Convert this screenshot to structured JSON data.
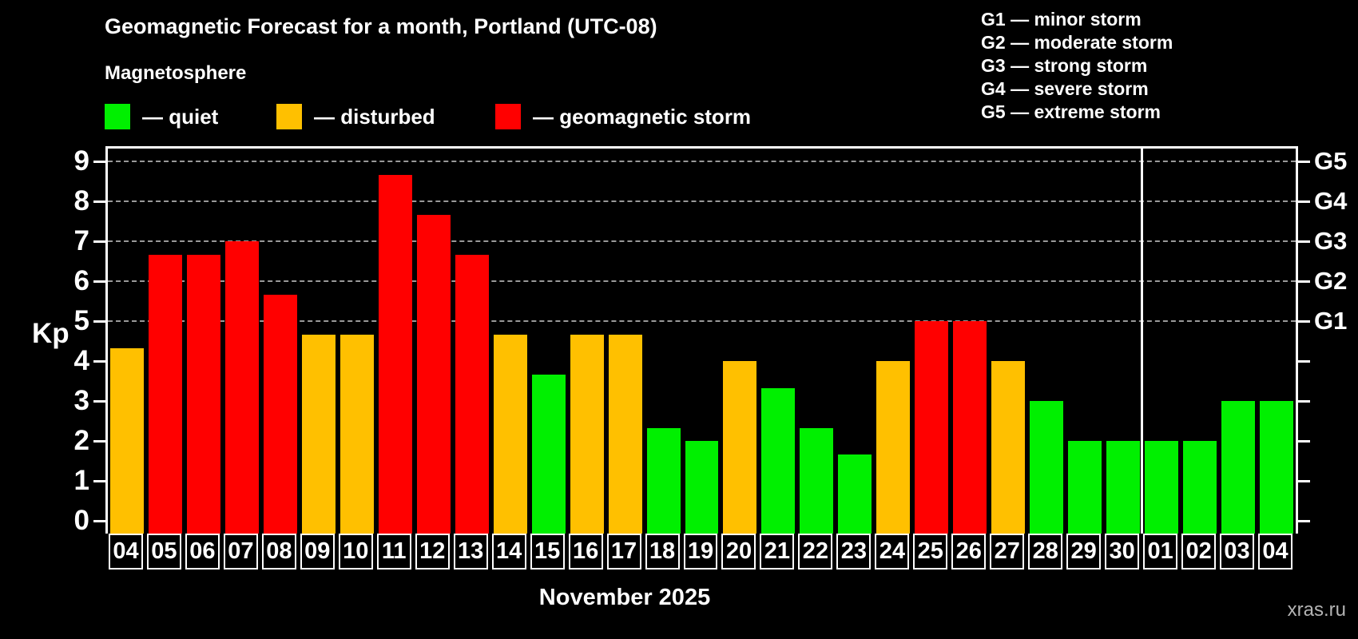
{
  "title": "Geomagnetic Forecast for a month, Portland (UTC-08)",
  "subtitle": "Magnetosphere",
  "legend": [
    {
      "text": "— quiet",
      "color": "#00f000"
    },
    {
      "text": "— disturbed",
      "color": "#ffc000"
    },
    {
      "text": "— geomagnetic storm",
      "color": "#ff0000"
    }
  ],
  "g_legend": [
    "G1 — minor storm",
    "G2 — moderate storm",
    "G3 — strong storm",
    "G4 — severe storm",
    "G5 — extreme storm"
  ],
  "axis": {
    "y_label": "Kp",
    "y_ticks": [
      0,
      1,
      2,
      3,
      4,
      5,
      6,
      7,
      8,
      9
    ],
    "right_labels": [
      "G1",
      "G2",
      "G3",
      "G4",
      "G5"
    ],
    "right_label_kp_levels": [
      5,
      6,
      7,
      8,
      9
    ]
  },
  "footer": {
    "month_label": "November 2025",
    "watermark": "xras.ru"
  },
  "chart_data": {
    "type": "bar",
    "title": "Geomagnetic Forecast for a month, Portland (UTC-08)",
    "xlabel": "November 2025",
    "ylabel": "Kp",
    "ylim": [
      0,
      9.4
    ],
    "grid": "dashed horizontal at Kp 5-9 (G1-G5 levels)",
    "gridlines_at": [
      5,
      6,
      7,
      8,
      9
    ],
    "month_separator_after_index": 26,
    "status_colors": {
      "quiet": "#00f000",
      "disturbed": "#ffc000",
      "storm": "#ff0000"
    },
    "categories": [
      "04",
      "05",
      "06",
      "07",
      "08",
      "09",
      "10",
      "11",
      "12",
      "13",
      "14",
      "15",
      "16",
      "17",
      "18",
      "19",
      "20",
      "21",
      "22",
      "23",
      "24",
      "25",
      "26",
      "27",
      "28",
      "29",
      "30",
      "01",
      "02",
      "03",
      "04"
    ],
    "values": [
      4.33,
      6.67,
      6.67,
      7.0,
      5.67,
      4.67,
      4.67,
      8.67,
      7.67,
      6.67,
      4.67,
      3.67,
      4.67,
      4.67,
      2.33,
      2.0,
      4.0,
      3.33,
      2.33,
      1.67,
      4.0,
      5.0,
      5.0,
      4.0,
      3.0,
      2.0,
      2.0,
      2.0,
      2.0,
      3.0,
      3.0
    ],
    "statuses": [
      "disturbed",
      "storm",
      "storm",
      "storm",
      "storm",
      "disturbed",
      "disturbed",
      "storm",
      "storm",
      "storm",
      "disturbed",
      "quiet",
      "disturbed",
      "disturbed",
      "quiet",
      "quiet",
      "disturbed",
      "quiet",
      "quiet",
      "quiet",
      "disturbed",
      "storm",
      "storm",
      "disturbed",
      "quiet",
      "quiet",
      "quiet",
      "quiet",
      "quiet",
      "quiet",
      "quiet"
    ]
  }
}
